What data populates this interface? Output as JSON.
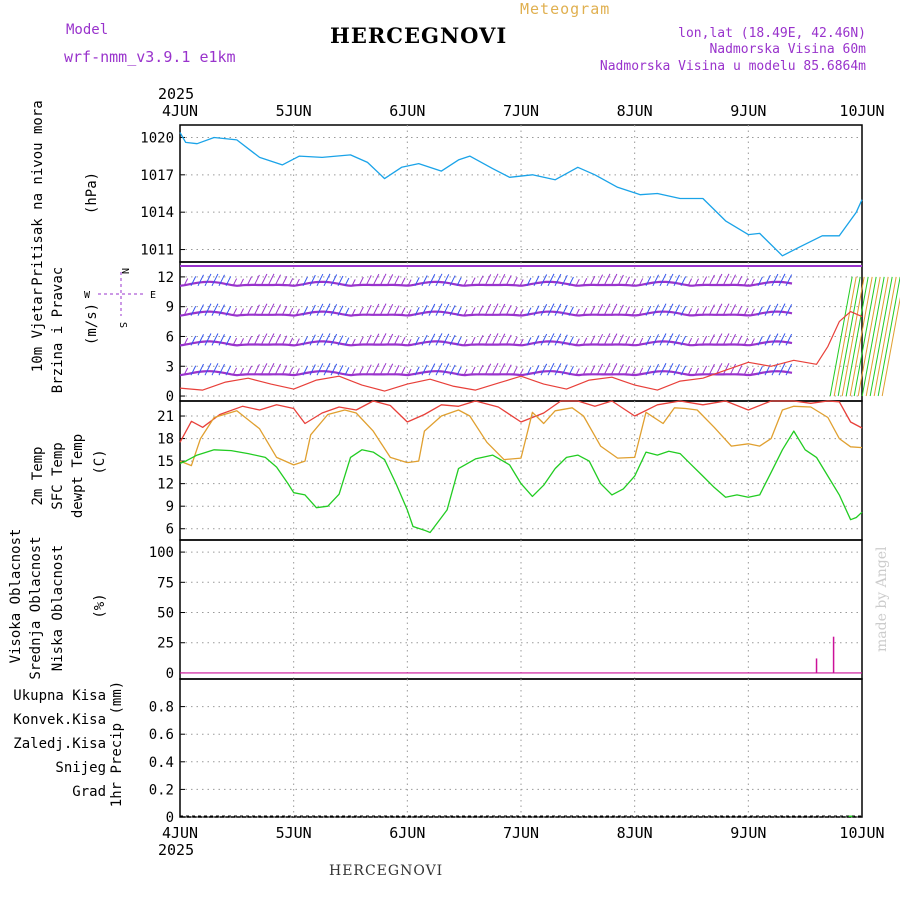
{
  "header": {
    "model_label": "Model",
    "model_name": "wrf-nmm_v3.9.1 e1km",
    "title": "HERCEGNOVI",
    "meteogram": "Meteogram",
    "lonlat": "lon,lat (18.49E, 42.46N)",
    "altitude": "Nadmorska Visina 60m",
    "model_altitude": "Nadmorska Visina u modelu 85.6864m"
  },
  "footer": {
    "station": "HERCEGNOVI"
  },
  "watermark": "made by Angel",
  "year": "2025",
  "colors": {
    "pressure": "#1aa3e8",
    "t2m": "#e8403a",
    "sfc": "#e0a030",
    "dew": "#22cc22",
    "cloud_high": "#1aa3e8",
    "cloud_mid": "#e0a030",
    "cloud_low": "#cc1199",
    "wind_green": "#22cc22",
    "wind_purple": "#9933cc",
    "gust": "#e8403a",
    "rain_total": "#22cc22",
    "rain_conv": "#e8403a",
    "rain_frz": "#ff7733",
    "snow": "#3333dd",
    "hail": "#22bbbb"
  },
  "chart_data": {
    "type": "line",
    "x_ticks": [
      "4JUN",
      "5JUN",
      "6JUN",
      "7JUN",
      "8JUN",
      "9JUN",
      "10JUN"
    ],
    "x_range": [
      "2025-06-04T00:00",
      "2025-06-10T00:00"
    ],
    "panels": [
      {
        "id": "pressure",
        "labels": [
          "Pritisak na nivou mora"
        ],
        "unit": "(hPa)",
        "ylim": [
          1010,
          1021
        ],
        "yticks": [
          1011,
          1014,
          1017,
          1020
        ],
        "series": [
          {
            "x": [
              0,
              0.05,
              0.15,
              0.3,
              0.5,
              0.7,
              0.9,
              1.05,
              1.25,
              1.5,
              1.65,
              1.8,
              1.95,
              2.1,
              2.3,
              2.45,
              2.55,
              2.75,
              2.9,
              3.1,
              3.3,
              3.5,
              3.65,
              3.85,
              4.05,
              4.2,
              4.4,
              4.6,
              4.8,
              5.0,
              5.1,
              5.3,
              5.45,
              5.65,
              5.8,
              5.95,
              6.0
            ],
            "values": [
              1020.4,
              1019.6,
              1019.5,
              1020.0,
              1019.8,
              1018.4,
              1017.8,
              1018.5,
              1018.4,
              1018.6,
              1018.0,
              1016.7,
              1017.6,
              1017.9,
              1017.3,
              1018.2,
              1018.5,
              1017.5,
              1016.8,
              1017.0,
              1016.6,
              1017.6,
              1017.0,
              1016.0,
              1015.4,
              1015.5,
              1015.1,
              1015.1,
              1013.3,
              1012.2,
              1012.3,
              1010.5,
              1011.2,
              1012.1,
              1012.1,
              1014.0,
              1015.0
            ]
          }
        ]
      },
      {
        "id": "wind",
        "labels": [
          "10m Vjetar",
          "Brzina i Pravac"
        ],
        "unit": "(m/s)",
        "compass": "N W E S",
        "ylim": [
          -0.5,
          13.5
        ],
        "yticks": [
          0,
          3,
          6,
          9,
          12
        ],
        "series": [
          {
            "name": "gust",
            "x": [
              0,
              0.2,
              0.4,
              0.6,
              0.8,
              1.0,
              1.2,
              1.4,
              1.6,
              1.8,
              2.0,
              2.2,
              2.4,
              2.6,
              2.8,
              3.0,
              3.2,
              3.4,
              3.6,
              3.8,
              4.0,
              4.2,
              4.4,
              4.6,
              4.8,
              5.0,
              5.2,
              5.4,
              5.6,
              5.7,
              5.8,
              5.9,
              6.0
            ],
            "values": [
              0.8,
              0.6,
              1.4,
              1.8,
              1.2,
              0.7,
              1.6,
              2.0,
              1.1,
              0.5,
              1.2,
              1.7,
              1.0,
              0.6,
              1.3,
              2.0,
              1.2,
              0.7,
              1.6,
              1.9,
              1.1,
              0.6,
              1.5,
              1.8,
              2.6,
              3.4,
              3.0,
              3.6,
              3.2,
              5.0,
              7.5,
              8.5,
              8.0
            ]
          }
        ]
      },
      {
        "id": "temperature",
        "labels": [
          "2m Temp",
          "SFC Temp",
          "dewpt Temp"
        ],
        "unit": "(C)",
        "ylim": [
          4.5,
          23
        ],
        "yticks": [
          6,
          9,
          12,
          15,
          18,
          21
        ],
        "series": [
          {
            "name": "2m Temp",
            "x": [
              0,
              0.1,
              0.2,
              0.35,
              0.55,
              0.7,
              0.85,
              1.0,
              1.1,
              1.25,
              1.4,
              1.55,
              1.7,
              1.85,
              2.0,
              2.15,
              2.3,
              2.45,
              2.6,
              2.8,
              3.0,
              3.2,
              3.35,
              3.5,
              3.65,
              3.8,
              4.0,
              4.2,
              4.4,
              4.6,
              4.8,
              5.0,
              5.2,
              5.4,
              5.55,
              5.7,
              5.8,
              5.9,
              6.0
            ],
            "values": [
              17.5,
              20.3,
              19.5,
              21.2,
              22.3,
              21.8,
              22.5,
              22.0,
              20.0,
              21.4,
              22.2,
              21.8,
              23.0,
              22.4,
              20.2,
              21.2,
              22.5,
              22.3,
              23.0,
              22.2,
              20.2,
              21.4,
              23.0,
              23.0,
              22.3,
              23.0,
              21.0,
              22.5,
              23.0,
              22.5,
              23.0,
              21.8,
              23.0,
              23.0,
              22.7,
              23.0,
              22.9,
              20.2,
              19.4
            ]
          },
          {
            "name": "SFC Temp",
            "x": [
              0,
              0.1,
              0.18,
              0.3,
              0.5,
              0.7,
              0.85,
              1.0,
              1.1,
              1.15,
              1.3,
              1.45,
              1.55,
              1.7,
              1.85,
              2.0,
              2.1,
              2.15,
              2.3,
              2.45,
              2.55,
              2.7,
              2.85,
              3.0,
              3.1,
              3.2,
              3.3,
              3.45,
              3.55,
              3.7,
              3.85,
              4.0,
              4.1,
              4.25,
              4.35,
              4.45,
              4.55,
              4.7,
              4.85,
              5.0,
              5.1,
              5.2,
              5.3,
              5.4,
              5.55,
              5.7,
              5.8,
              5.9,
              6.0
            ],
            "values": [
              15.0,
              14.4,
              18.0,
              20.8,
              21.7,
              19.3,
              15.5,
              14.5,
              15.0,
              18.5,
              21.2,
              21.8,
              21.4,
              19.0,
              15.5,
              14.8,
              15.0,
              19.0,
              21.0,
              21.8,
              21.0,
              17.5,
              15.2,
              15.4,
              21.5,
              20.0,
              21.7,
              22.1,
              21.0,
              17.0,
              15.4,
              15.5,
              21.5,
              20.0,
              22.1,
              22.0,
              21.8,
              19.5,
              17.0,
              17.3,
              17.0,
              18.0,
              21.8,
              22.3,
              22.2,
              20.8,
              18.0,
              16.9,
              16.8
            ]
          },
          {
            "name": "dewpt Temp",
            "x": [
              0,
              0.05,
              0.15,
              0.3,
              0.45,
              0.6,
              0.75,
              0.85,
              0.95,
              1.0,
              1.1,
              1.2,
              1.3,
              1.4,
              1.5,
              1.6,
              1.7,
              1.8,
              1.9,
              2.0,
              2.05,
              2.15,
              2.2,
              2.3,
              2.35,
              2.45,
              2.6,
              2.75,
              2.9,
              3.0,
              3.1,
              3.2,
              3.3,
              3.4,
              3.5,
              3.6,
              3.7,
              3.8,
              3.9,
              4.0,
              4.1,
              4.2,
              4.3,
              4.4,
              4.5,
              4.6,
              4.7,
              4.8,
              4.9,
              5.0,
              5.1,
              5.2,
              5.3,
              5.4,
              5.5,
              5.6,
              5.7,
              5.8,
              5.9,
              5.95,
              6.0
            ],
            "values": [
              14.7,
              15.0,
              15.8,
              16.5,
              16.4,
              16.0,
              15.5,
              14.2,
              12.0,
              10.8,
              10.5,
              8.8,
              9.0,
              10.6,
              15.5,
              16.5,
              16.2,
              15.2,
              12.0,
              8.5,
              6.3,
              5.8,
              5.5,
              7.5,
              8.5,
              14.0,
              15.3,
              15.8,
              14.5,
              12.0,
              10.3,
              11.8,
              14.0,
              15.5,
              15.8,
              15.0,
              12.0,
              10.5,
              11.3,
              13.0,
              16.2,
              15.8,
              16.3,
              16.0,
              14.5,
              13.0,
              11.5,
              10.2,
              10.5,
              10.2,
              10.5,
              13.5,
              16.5,
              19.0,
              16.5,
              15.5,
              13.0,
              10.5,
              7.2,
              7.5,
              8.2
            ]
          }
        ]
      },
      {
        "id": "clouds",
        "labels": [
          "Visoka Oblacnost",
          "Srednja Oblacnost",
          "Niska Oblacnost"
        ],
        "unit": "(%)",
        "ylim": [
          -5,
          110
        ],
        "yticks": [
          0,
          25,
          50,
          75,
          100
        ],
        "series": [
          {
            "name": "Niska Oblacnost",
            "x": [
              5.6,
              5.75
            ],
            "values": [
              12,
              30
            ]
          }
        ]
      },
      {
        "id": "precip",
        "labels": [
          "Ukupna Kisa",
          "Konvek.Kisa",
          "Zaledj.Kisa",
          "Snijeg",
          "Grad"
        ],
        "unit": "1hr Precip (mm)",
        "ylim": [
          0,
          1.0
        ],
        "yticks": [
          0,
          0.2,
          0.4,
          0.6,
          0.8
        ],
        "series": [
          {
            "name": "Ukupna Kisa",
            "x": [
              5.9
            ],
            "values": [
              0.005
            ]
          }
        ]
      }
    ]
  }
}
